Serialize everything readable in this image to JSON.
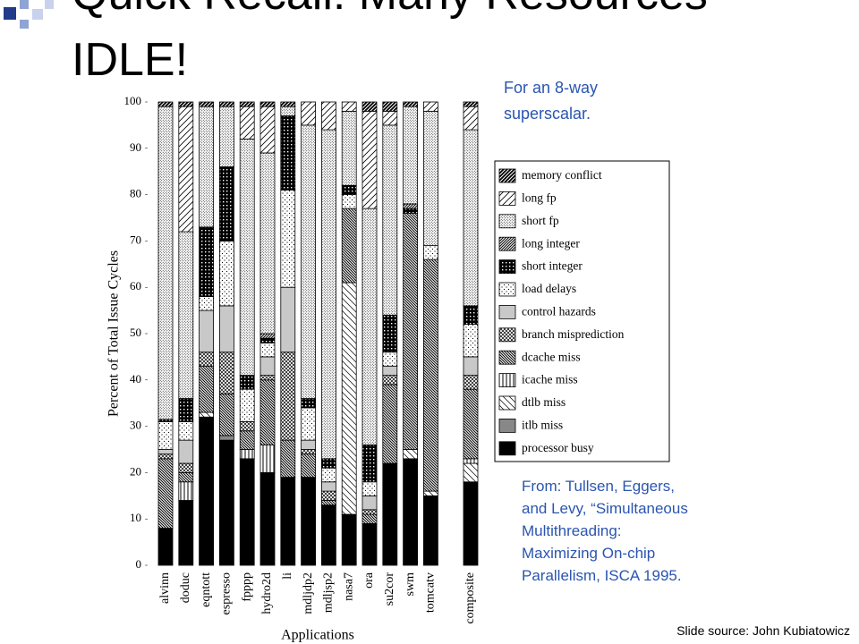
{
  "slide": {
    "title": "Quick Recall: Many Resources IDLE!",
    "note": "For an 8-way superscalar.",
    "citation": "From: Tullsen, Eggers, and Levy, “Simultaneous Multithreading: Maximizing On-chip Parallelism, ISCA 1995.",
    "source": "Slide source: John Kubiatowicz"
  },
  "chart_data": {
    "type": "stacked-bar",
    "y_label": "Percent of Total Issue Cycles",
    "x_label": "Applications",
    "categories": [
      "alvinn",
      "doduc",
      "eqntott",
      "espresso",
      "fpppp",
      "hydro2d",
      "li",
      "mdljdp2",
      "mdljsp2",
      "nasa7",
      "ora",
      "su2cor",
      "swm",
      "tomcatv",
      "composite"
    ],
    "ylim": [
      0,
      100
    ],
    "yticks": [
      0,
      10,
      20,
      30,
      40,
      50,
      60,
      70,
      80,
      90,
      100
    ],
    "series": [
      {
        "name": "processor busy",
        "color": "#000000",
        "pattern": "solid",
        "values": [
          8,
          14,
          32,
          27,
          23,
          20,
          19,
          19,
          13,
          11,
          9,
          22,
          23,
          15,
          18
        ]
      },
      {
        "name": "itlb miss",
        "color": "#888888",
        "pattern": "solid",
        "values": [
          0,
          0,
          0,
          1,
          0,
          0,
          0,
          0,
          0,
          0,
          0,
          0,
          0,
          0,
          0
        ]
      },
      {
        "name": "dtlb miss",
        "color": "#000000",
        "pattern": "diag-back-sparse",
        "values": [
          0,
          0,
          1,
          0,
          0,
          0,
          0,
          0,
          0,
          50,
          0,
          0,
          2,
          1,
          4
        ]
      },
      {
        "name": "icache miss",
        "color": "#000000",
        "pattern": "vertical",
        "values": [
          0,
          4,
          0,
          0,
          2,
          6,
          0,
          0,
          0,
          0,
          0,
          0,
          0,
          0,
          1
        ]
      },
      {
        "name": "dcache miss",
        "color": "#000000",
        "pattern": "diag-back-dense",
        "values": [
          15,
          2,
          10,
          9,
          4,
          14,
          8,
          5,
          1,
          16,
          2,
          17,
          51,
          50,
          15
        ]
      },
      {
        "name": "branch misprediction",
        "color": "#000000",
        "pattern": "crosshatch",
        "values": [
          1,
          2,
          3,
          9,
          2,
          1,
          19,
          1,
          2,
          0,
          1,
          2,
          0,
          0,
          3
        ]
      },
      {
        "name": "control hazards",
        "color": "#c8c8c8",
        "pattern": "solid",
        "values": [
          1,
          5,
          9,
          10,
          0,
          4,
          14,
          2,
          2,
          0,
          3,
          2,
          0,
          0,
          4
        ]
      },
      {
        "name": "load delays",
        "color": "#000000",
        "pattern": "dots-sparse",
        "values": [
          6,
          4,
          3,
          14,
          7,
          3,
          21,
          7,
          3,
          3,
          3,
          3,
          0,
          3,
          7
        ]
      },
      {
        "name": "short integer",
        "color": "#000000",
        "pattern": "grid",
        "values": [
          0.5,
          5,
          15,
          16,
          3,
          1,
          16,
          2,
          2,
          2,
          8,
          8,
          1,
          0,
          4
        ]
      },
      {
        "name": "long integer",
        "color": "#000000",
        "pattern": "diag-fwd-dense",
        "values": [
          0,
          0,
          0,
          0,
          0,
          1,
          0,
          0,
          0,
          0,
          0,
          0,
          1,
          0,
          0
        ]
      },
      {
        "name": "short fp",
        "color": "#000000",
        "pattern": "dots-dense",
        "values": [
          67.5,
          36,
          26,
          13,
          51,
          39,
          2,
          59,
          71,
          16,
          51,
          41,
          21,
          29,
          38
        ]
      },
      {
        "name": "long fp",
        "color": "#000000",
        "pattern": "diag-fwd-sparse",
        "values": [
          0,
          27,
          0,
          0,
          7,
          10,
          0,
          5,
          6,
          2,
          21,
          3,
          0,
          2,
          5
        ]
      },
      {
        "name": "memory conflict",
        "color": "#000000",
        "pattern": "diag-heavy",
        "values": [
          1,
          1,
          1,
          1,
          1,
          1,
          1,
          0,
          0,
          0,
          2,
          2,
          1,
          0,
          1
        ]
      }
    ]
  }
}
